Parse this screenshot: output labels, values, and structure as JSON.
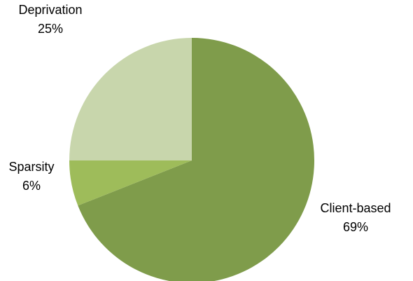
{
  "chart_data": {
    "type": "pie",
    "title": "",
    "slices": [
      {
        "label": "Client-based",
        "value": 69,
        "percent_label": "69%",
        "color": "#7f9c4b"
      },
      {
        "label": "Sparsity",
        "value": 6,
        "percent_label": "6%",
        "color": "#9ebc5a"
      },
      {
        "label": "Deprivation",
        "value": 25,
        "percent_label": "25%",
        "color": "#c8d6ac"
      }
    ],
    "start_angle": "12 o'clock",
    "direction": "clockwise",
    "legend": "none"
  }
}
